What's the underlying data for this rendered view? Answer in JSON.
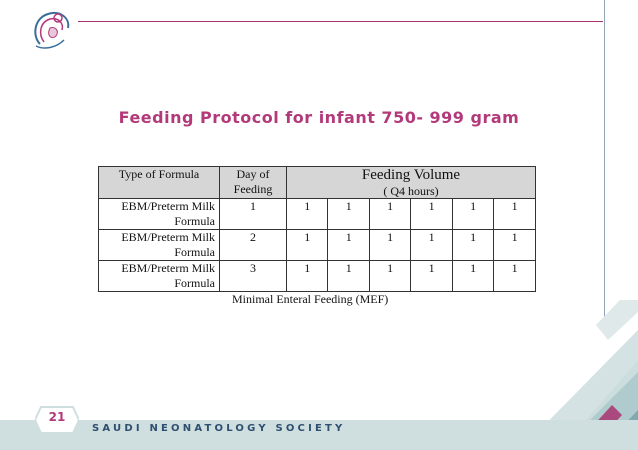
{
  "slide": {
    "title": "Feeding Protocol for infant 750- 999 gram",
    "page_number": "21",
    "footer_text": "SAUDI NEONATOLOGY SOCIETY",
    "caption": "Minimal Enteral Feeding (MEF)"
  },
  "table": {
    "headers": {
      "type": "Type of Formula",
      "day": "Day of Feeding",
      "volume": "Feeding Volume",
      "volume_sub": "( Q4 hours)"
    },
    "rows": [
      {
        "type": "EBM/Preterm Milk Formula",
        "day": "1",
        "values": [
          "1",
          "1",
          "1",
          "1",
          "1",
          "1"
        ]
      },
      {
        "type": "EBM/Preterm Milk Formula",
        "day": "2",
        "values": [
          "1",
          "1",
          "1",
          "1",
          "1",
          "1"
        ]
      },
      {
        "type": "EBM/Preterm Milk Formula",
        "day": "3",
        "values": [
          "1",
          "1",
          "1",
          "1",
          "1",
          "1"
        ]
      }
    ]
  },
  "colors": {
    "accent": "#b33a7a",
    "band": "#cfdfe0",
    "decor_teal": "#8fb5b8"
  }
}
